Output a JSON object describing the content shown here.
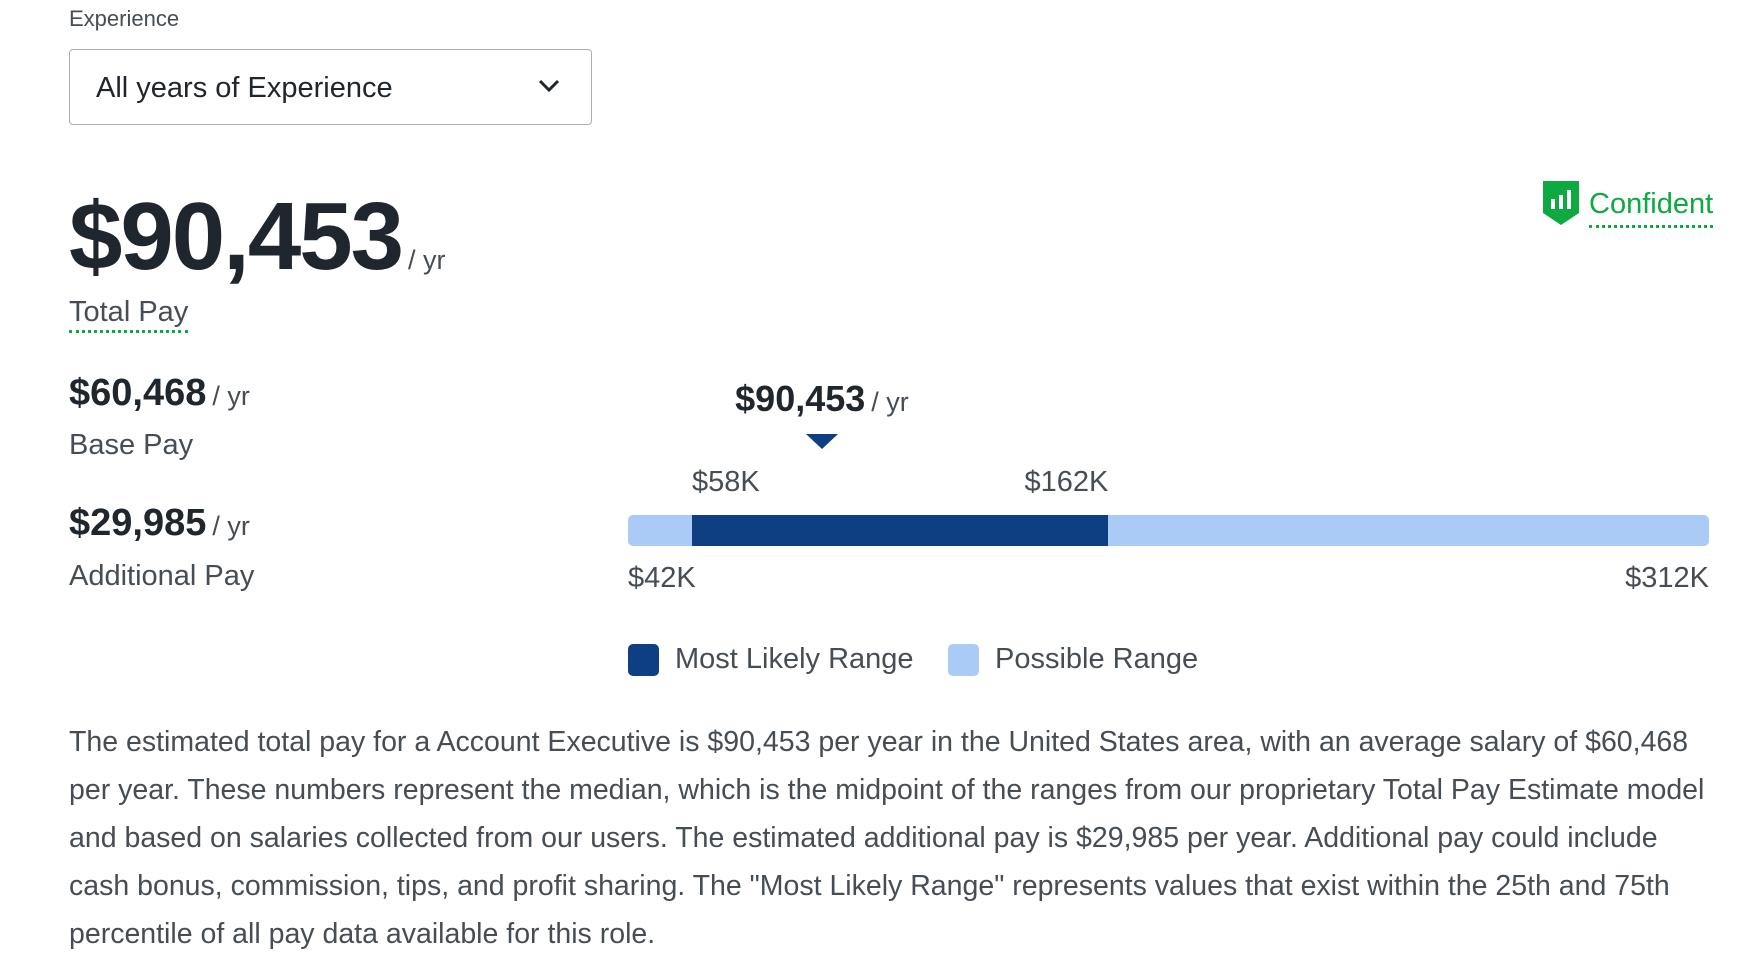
{
  "filter": {
    "label": "Experience",
    "selected": "All years of Experience",
    "icon": "chevron-down-icon"
  },
  "total_pay": {
    "amount": "$90,453",
    "unit": "/ yr",
    "label": "Total Pay"
  },
  "confidence": {
    "label": "Confident",
    "icon": "shield-bar-chart-icon",
    "color": "#0caa41"
  },
  "base_pay": {
    "amount": "$60,468",
    "unit": "/ yr",
    "label": "Base Pay"
  },
  "additional_pay": {
    "amount": "$29,985",
    "unit": "/ yr",
    "label": "Additional Pay"
  },
  "range": {
    "median": 90453,
    "median_label": "$90,453",
    "median_unit": "/ yr",
    "min": 42000,
    "max": 312000,
    "min_label": "$42K",
    "max_label": "$312K",
    "likely_low": 58000,
    "likely_high": 162000,
    "likely_low_label": "$58K",
    "likely_high_label": "$162K",
    "colors": {
      "likely": "#0d3f82",
      "possible": "#a9cbf5"
    }
  },
  "legend": {
    "likely": "Most Likely Range",
    "possible": "Possible Range"
  },
  "description": "The estimated total pay for a Account Executive is $90,453 per year in the United States area, with an average salary of $60,468 per year. These numbers represent the median, which is the midpoint of the ranges from our proprietary Total Pay Estimate model and based on salaries collected from our users. The estimated additional pay is $29,985 per year. Additional pay could include cash bonus, commission, tips, and profit sharing. The \"Most Likely Range\" represents values that exist within the 25th and 75th percentile of all pay data available for this role."
}
